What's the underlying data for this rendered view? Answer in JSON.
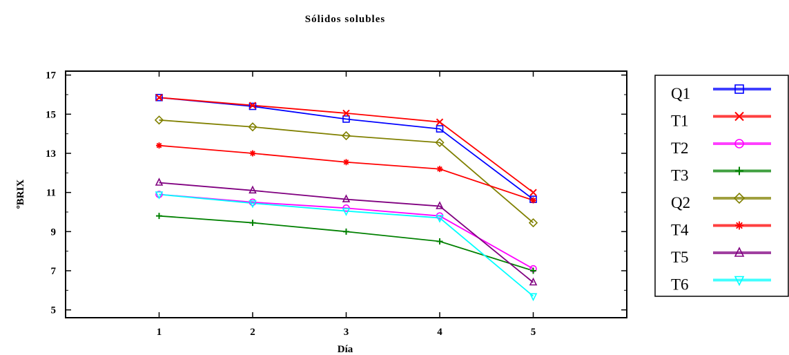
{
  "chart_data": {
    "type": "line",
    "title": "Sólidos solubles",
    "xlabel": "Día",
    "ylabel": "ºBRIX",
    "x": [
      1,
      2,
      3,
      4,
      5
    ],
    "xlim": [
      0,
      6
    ],
    "ylim": [
      4.6,
      17.2
    ],
    "xticks": [
      "1",
      "2",
      "3",
      "4",
      "5"
    ],
    "yticks": [
      "5",
      "7",
      "9",
      "11",
      "13",
      "15",
      "17"
    ],
    "legend_position": "right",
    "grid": false,
    "series": [
      {
        "name": "Q1",
        "color": "#0000ff",
        "marker": "square",
        "values": [
          15.85,
          15.4,
          14.75,
          14.25,
          10.65
        ]
      },
      {
        "name": "T1",
        "color": "#ff0000",
        "marker": "x",
        "values": [
          15.85,
          15.45,
          15.05,
          14.6,
          11.0
        ]
      },
      {
        "name": "T2",
        "color": "#ff00ff",
        "marker": "circle",
        "values": [
          10.9,
          10.5,
          10.2,
          9.8,
          7.1
        ]
      },
      {
        "name": "T3",
        "color": "#008000",
        "marker": "plus",
        "values": [
          9.8,
          9.45,
          9.0,
          8.5,
          7.0
        ]
      },
      {
        "name": "Q2",
        "color": "#808000",
        "marker": "diamond",
        "values": [
          14.7,
          14.35,
          13.9,
          13.55,
          9.45
        ]
      },
      {
        "name": "T4",
        "color": "#ff0000",
        "marker": "star",
        "values": [
          13.4,
          13.0,
          12.55,
          12.2,
          10.6
        ]
      },
      {
        "name": "T5",
        "color": "#800080",
        "marker": "triangle",
        "values": [
          11.5,
          11.1,
          10.65,
          10.3,
          6.4
        ]
      },
      {
        "name": "T6",
        "color": "#00ffff",
        "marker": "triangle-down",
        "values": [
          10.9,
          10.45,
          10.05,
          9.7,
          5.7
        ]
      }
    ]
  }
}
